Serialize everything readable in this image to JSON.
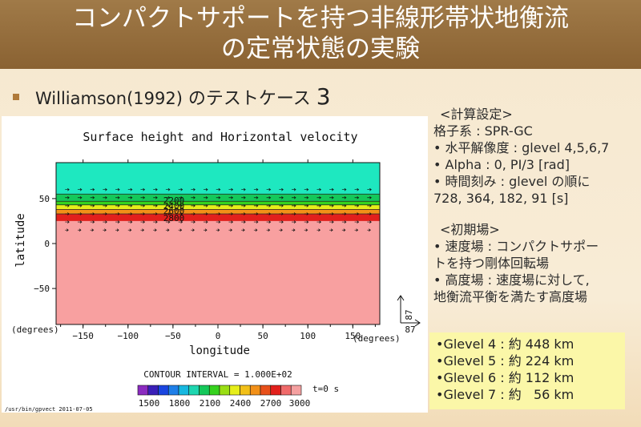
{
  "title": {
    "line1": "コンパクトサポートを持つ非線形帯状地衡流",
    "line2": "の定常状態の実験"
  },
  "bullet": {
    "text_a": "Williamson(1992)",
    "text_b": " のテストケース ",
    "text_c": "3"
  },
  "plot": {
    "title": "Surface height and Horizontal velocity",
    "ylabel": "latitude",
    "xlabel": "longitude",
    "x_unit": "(degrees)",
    "x_unit_right": "(degrees)",
    "x_ticks": [
      "−150",
      "−100",
      "−50",
      "0",
      "50",
      "100",
      "150"
    ],
    "y_ticks": [
      "50",
      "0",
      "−50"
    ],
    "contour_labels": [
      "2200",
      "2400",
      "2600",
      "2800"
    ],
    "vector_ref_value": "87",
    "vector_ref_value2": "87",
    "contour_interval": "CONTOUR INTERVAL = 1.000E+02",
    "time_label": "t=0 s",
    "colorbar_labels": [
      "1500",
      "1800",
      "2100",
      "2400",
      "2700",
      "3000"
    ],
    "colorbar_colors": [
      "#8b2bc0",
      "#3a1fb8",
      "#1a45e0",
      "#1f7fe8",
      "#17b8e0",
      "#1ed6b0",
      "#14c85a",
      "#36d21e",
      "#9ade14",
      "#e6ee1a",
      "#f2c018",
      "#f29018",
      "#e8501a",
      "#e2201c",
      "#f06a6a",
      "#f4a0a0"
    ],
    "footer": "/usr/bin/gpvect  2011-07-05"
  },
  "chart_data": {
    "type": "heatmap",
    "title": "Surface height and Horizontal velocity",
    "xlabel": "longitude",
    "ylabel": "latitude",
    "xlim": [
      -180,
      180
    ],
    "ylim": [
      -90,
      90
    ],
    "bands": [
      {
        "lat_from": 55,
        "lat_to": 90,
        "color": "#1ee8c0"
      },
      {
        "lat_from": 47,
        "lat_to": 55,
        "color": "#14c85a"
      },
      {
        "lat_from": 43,
        "lat_to": 47,
        "color": "#36d21e"
      },
      {
        "lat_from": 38,
        "lat_to": 43,
        "color": "#e6ee1a"
      },
      {
        "lat_from": 33,
        "lat_to": 38,
        "color": "#f29018"
      },
      {
        "lat_from": 25,
        "lat_to": 33,
        "color": "#e2201c"
      },
      {
        "lat_from": -90,
        "lat_to": 25,
        "color": "#f8a0a0"
      }
    ],
    "contour_levels": [
      2200,
      2400,
      2600,
      2800
    ]
  },
  "settings": {
    "header": "<計算設定>",
    "lines": [
      "格子系 : SPR-GC",
      "• 水平解像度 : glevel 4,5,6,7",
      "• Alpha : 0, PI/3 [rad]",
      "• 時間刻み : glevel の順に",
      "728, 364, 182, 91 [s]"
    ]
  },
  "initial": {
    "header": "<初期場>",
    "lines": [
      "• 速度場 : コンパクトサポー",
      "トを持つ剛体回転場",
      "• 高度場 : 速度場に対して,",
      "地衡流平衡を満たす高度場"
    ]
  },
  "resolutions": [
    "•Glevel 4 : 約 448 km",
    "•Glevel 5 : 約 224 km",
    "•Glevel 6 : 約 112 km",
    "•Glevel 7 : 約   56 km"
  ]
}
